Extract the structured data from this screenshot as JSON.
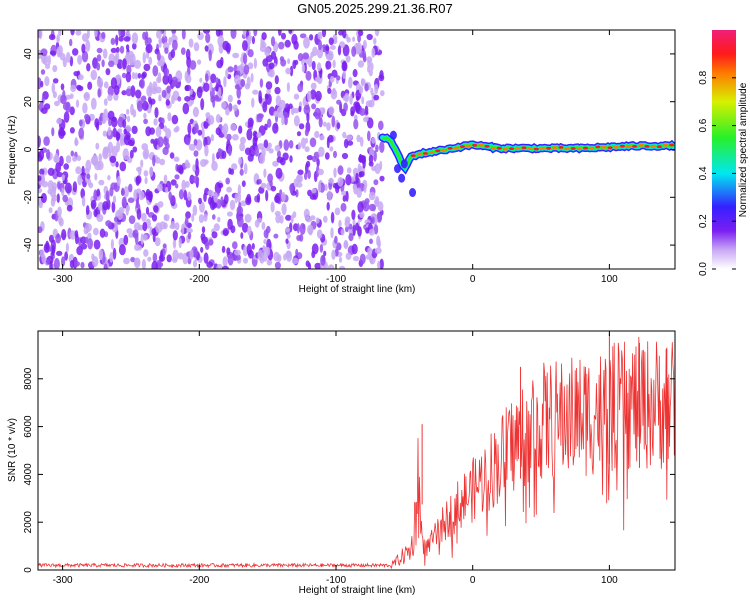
{
  "title": "GN05.2025.299.21.36.R07",
  "chart_data": [
    {
      "type": "heatmap",
      "title": "GN05.2025.299.21.36.R07",
      "xlabel": "Height of straight line (km)",
      "ylabel": "Frequency (Hz)",
      "xlim": [
        -318,
        148
      ],
      "ylim": [
        -50,
        50
      ],
      "xticks": [
        -300,
        -200,
        -100,
        0,
        100
      ],
      "yticks": [
        -40,
        -20,
        0,
        20,
        40
      ],
      "xtick_labels": [
        "-300",
        "-200",
        "-100",
        "0",
        "100"
      ],
      "ytick_labels": [
        "-40",
        "-20",
        "0",
        "20",
        "40"
      ],
      "noise_region_x": [
        -318,
        -66
      ],
      "signal_line": {
        "x": [
          -66,
          -60,
          -55,
          -50,
          -45,
          -40,
          -30,
          -20,
          -10,
          0,
          20,
          40,
          60,
          80,
          100,
          120,
          148
        ],
        "frequency": [
          5,
          4,
          -2,
          -8,
          -3,
          -2,
          -1,
          0,
          1,
          2,
          0.5,
          0.5,
          0.5,
          0.5,
          1,
          1.5,
          1.5
        ]
      },
      "colorbar": {
        "label": "Normalized spectral amplitude",
        "range": [
          0,
          1
        ],
        "ticks": [
          0.0,
          0.2,
          0.4,
          0.6,
          0.8
        ],
        "tick_labels": [
          "0.0",
          "0.2",
          "0.4",
          "0.6",
          "0.8"
        ],
        "colors": [
          "#ffffff",
          "#c9a8f5",
          "#7b1ff2",
          "#3520ff",
          "#00e8f0",
          "#28f028",
          "#d8f000",
          "#ff7a00",
          "#ff1a1a",
          "#f01e78"
        ]
      }
    },
    {
      "type": "line",
      "xlabel": "Height of straight line (km)",
      "ylabel": "SNR (10 * v/v)",
      "xlim": [
        -318,
        148
      ],
      "ylim": [
        0,
        10000
      ],
      "xticks": [
        -300,
        -200,
        -100,
        0,
        100
      ],
      "yticks": [
        0,
        2000,
        4000,
        6000,
        8000
      ],
      "xtick_labels": [
        "-300",
        "-200",
        "-100",
        "0",
        "100"
      ],
      "ytick_labels": [
        "0",
        "2000",
        "4000",
        "6000",
        "8000"
      ],
      "line_color": "#ee3333",
      "envelope": {
        "x": [
          -318,
          -60,
          -45,
          -42,
          -40,
          -38,
          -35,
          -30,
          -20,
          -10,
          0,
          10,
          20,
          30,
          40,
          50,
          60,
          80,
          100,
          120,
          148
        ],
        "snr": [
          250,
          250,
          1200,
          3000,
          5800,
          2500,
          900,
          1300,
          2200,
          3000,
          3600,
          4300,
          5000,
          5700,
          6400,
          6700,
          6800,
          7000,
          7300,
          7500,
          7600
        ]
      },
      "peaks": [
        {
          "x": -37,
          "snr": 6100
        },
        {
          "x": 35,
          "snr": 8500
        },
        {
          "x": 100,
          "snr": 9900
        },
        {
          "x": 122,
          "snr": 9500
        },
        {
          "x": 142,
          "snr": 9300
        }
      ]
    }
  ]
}
